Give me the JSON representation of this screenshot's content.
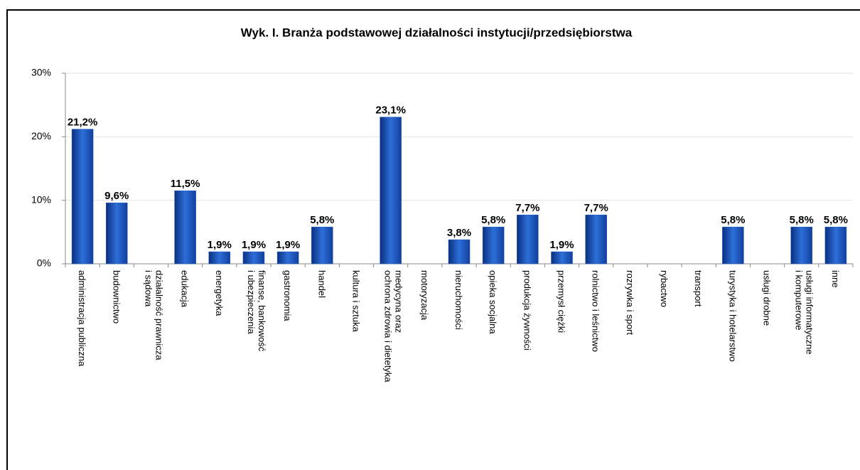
{
  "chart_data": {
    "type": "bar",
    "title": "Wyk. I. Branża podstawowej działalności instytucji/przedsiębiorstwa",
    "categories": [
      [
        "administracja publiczna"
      ],
      [
        "budownictwo"
      ],
      [
        "działalność prawnicza",
        "i sądowa"
      ],
      [
        "edukacja"
      ],
      [
        "energetyka"
      ],
      [
        "finanse, bankowość",
        "i ubezpieczenia"
      ],
      [
        "gastronomia"
      ],
      [
        "handel"
      ],
      [
        "kultura i sztuka"
      ],
      [
        "medycyna oraz",
        "ochrona zdrowia i dietetyka"
      ],
      [
        "motoryzacja"
      ],
      [
        "nieruchomości"
      ],
      [
        "opieka socjalna"
      ],
      [
        "produkcja żywności"
      ],
      [
        "przemysł ciężki"
      ],
      [
        "rolnictwo i leśnictwo"
      ],
      [
        "rozrywka i sport"
      ],
      [
        "rybactwo"
      ],
      [
        "transport"
      ],
      [
        "turystyka i hotelarstwo"
      ],
      [
        "usługi drobne"
      ],
      [
        "usługi informatyczne",
        "i komputerowe"
      ],
      [
        "inne"
      ]
    ],
    "values": [
      21.2,
      9.6,
      0,
      11.5,
      1.9,
      1.9,
      1.9,
      5.8,
      0,
      23.1,
      0,
      3.8,
      5.8,
      7.7,
      1.9,
      7.7,
      0,
      0,
      0,
      5.8,
      0,
      5.8,
      5.8
    ],
    "value_labels": [
      "21,2%",
      "9,6%",
      null,
      "11,5%",
      "1,9%",
      "1,9%",
      "1,9%",
      "5,8%",
      null,
      "23,1%",
      null,
      "3,8%",
      "5,8%",
      "7,7%",
      "1,9%",
      "7,7%",
      null,
      null,
      null,
      "5,8%",
      null,
      "5,8%",
      "5,8%"
    ],
    "color": "#1f5bc4",
    "ylim": [
      0,
      30
    ],
    "yticks": [
      {
        "value": 0,
        "label": "0%"
      },
      {
        "value": 10,
        "label": "10%"
      },
      {
        "value": 20,
        "label": "20%"
      },
      {
        "value": 30,
        "label": "30%"
      }
    ],
    "grid": true
  }
}
